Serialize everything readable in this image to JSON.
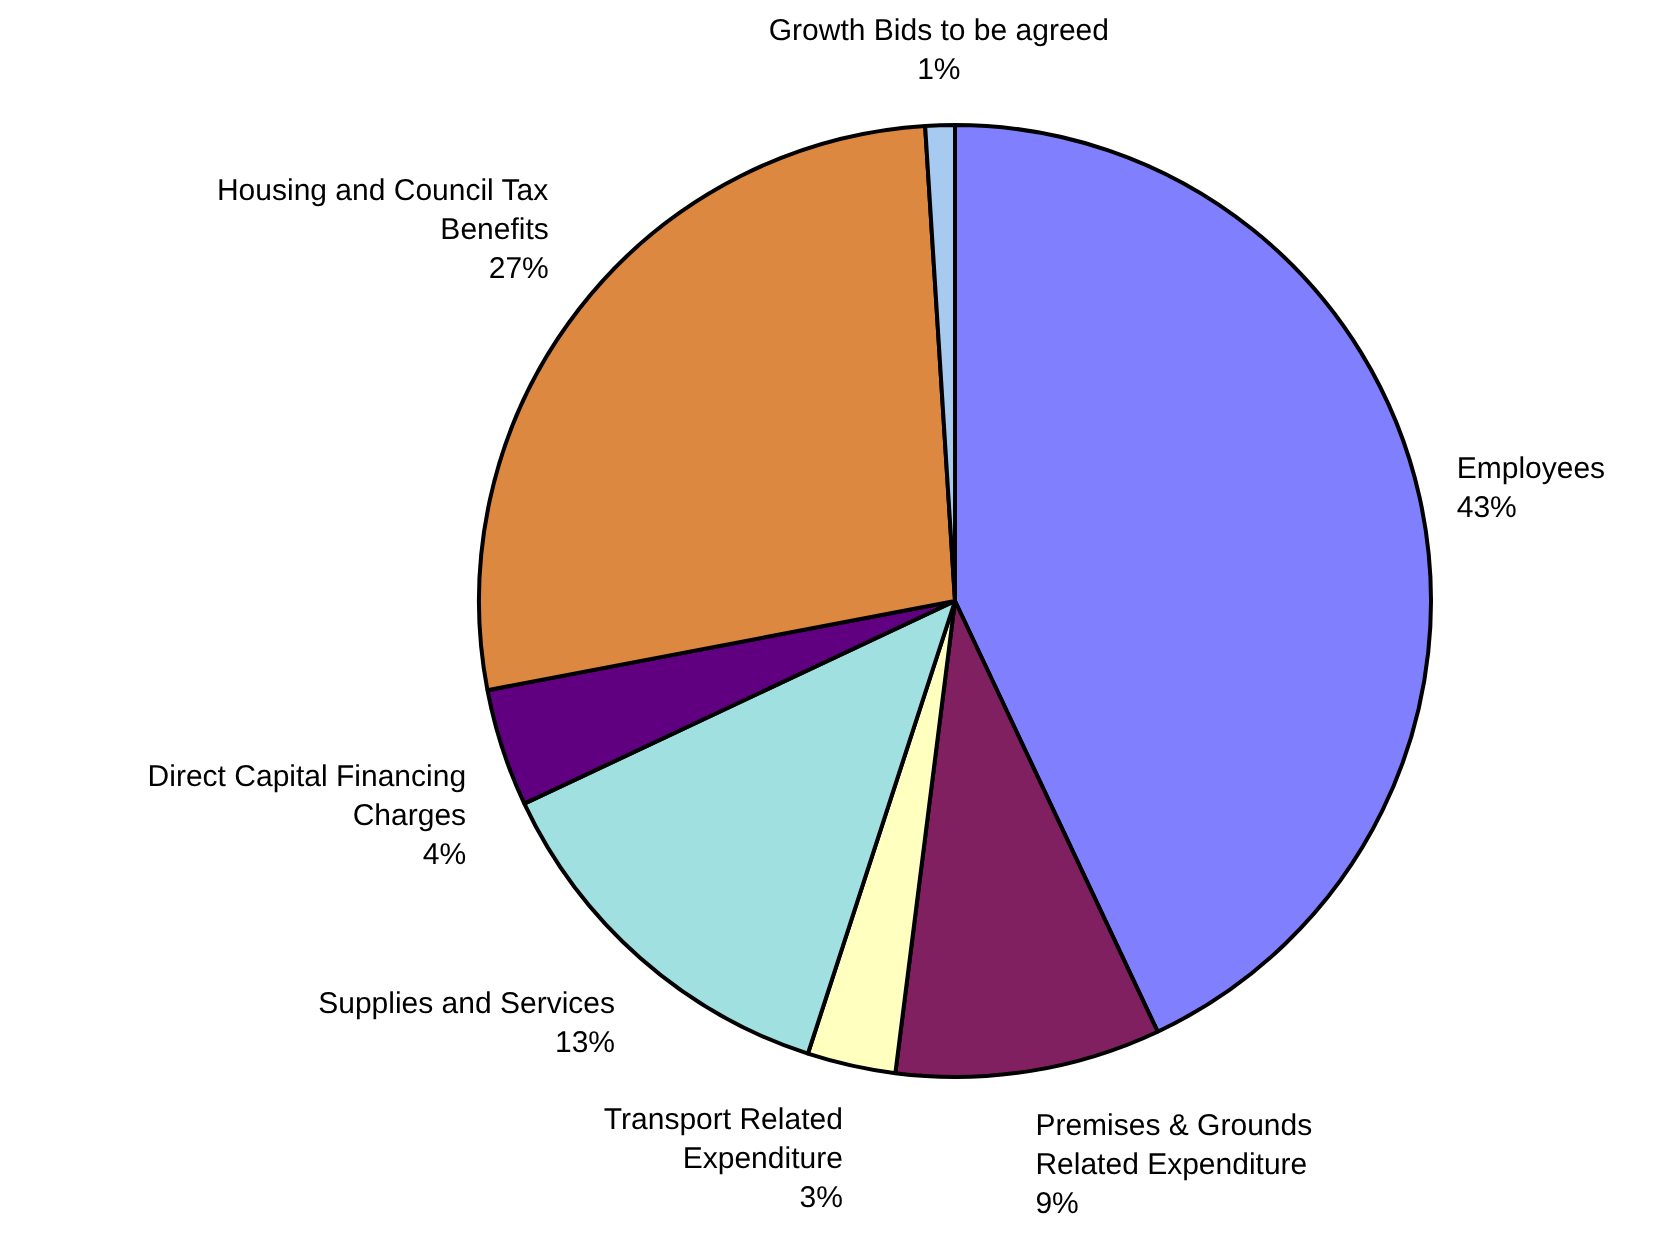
{
  "chart_data": {
    "type": "pie",
    "categories": [
      "Employees",
      "Premises & Grounds Related Expenditure",
      "Transport Related Expenditure",
      "Supplies and Services",
      "Direct Capital Financing Charges",
      "Housing and Council Tax Benefits",
      "Growth Bids to be agreed"
    ],
    "values": [
      43,
      9,
      3,
      13,
      4,
      27,
      1
    ],
    "value_labels": [
      "43%",
      "9%",
      "3%",
      "13%",
      "4%",
      "27%",
      "1%"
    ],
    "colors": [
      "#8080ff",
      "#802060",
      "#ffffc0",
      "#a0e0e0",
      "#600080",
      "#dd8840",
      "#a6caf0"
    ]
  }
}
